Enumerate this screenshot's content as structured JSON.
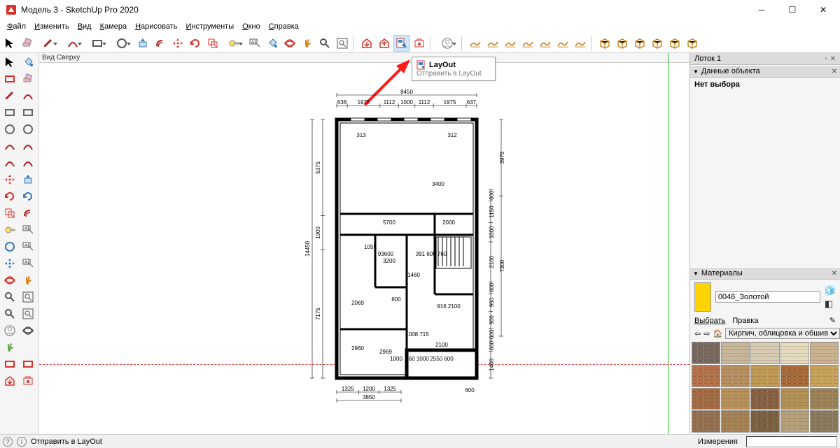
{
  "app": {
    "icon_color": "#d9322b",
    "title": "Модель 3 - SketchUp Pro 2020"
  },
  "menu": {
    "items": [
      "Файл",
      "Изменить",
      "Вид",
      "Камера",
      "Нарисовать",
      "Инструменты",
      "Окно",
      "Справка"
    ]
  },
  "top_toolbar": {
    "icons": [
      {
        "name": "select-arrow",
        "color": "#000"
      },
      {
        "name": "eraser",
        "color": "#6e6e6e"
      },
      {
        "name": "pencil",
        "color": "#b02020",
        "drop": true
      },
      {
        "name": "arc",
        "color": "#b02020",
        "drop": true
      },
      {
        "name": "rectangle",
        "color": "#5a5a5a",
        "drop": true
      },
      {
        "name": "circle",
        "color": "#5a5a5a",
        "drop": true
      },
      {
        "name": "pushpull",
        "color": "#3a78b5"
      },
      {
        "name": "offset",
        "color": "#b02020"
      },
      {
        "name": "move",
        "color": "#d9322b"
      },
      {
        "name": "rotate",
        "color": "#d9322b"
      },
      {
        "name": "scale",
        "color": "#d9322b"
      },
      {
        "name": "tape",
        "color": "#444",
        "drop": true
      },
      {
        "name": "text-label",
        "color": "#444"
      },
      {
        "name": "paint-bucket",
        "color": "#3a78b5"
      },
      {
        "name": "orbit",
        "color": "#d9322b"
      },
      {
        "name": "pan",
        "color": "#d9871d"
      },
      {
        "name": "zoom",
        "color": "#5a5a5a"
      },
      {
        "name": "zoom-extents",
        "color": "#5a5a5a"
      },
      {
        "name": "sep"
      },
      {
        "name": "warehouse-get",
        "color": "#d9322b"
      },
      {
        "name": "warehouse-share",
        "color": "#d9322b"
      },
      {
        "name": "send-layout",
        "color": "#3a78b5",
        "highlighted": true
      },
      {
        "name": "extension-wh",
        "color": "#d9322b"
      },
      {
        "name": "sep"
      },
      {
        "name": "account",
        "color": "#888",
        "drop": true
      },
      {
        "name": "sep"
      },
      {
        "name": "sandbox-contour",
        "color": "#c27b10"
      },
      {
        "name": "sandbox-scratch",
        "color": "#c27b10"
      },
      {
        "name": "sandbox-smoove",
        "color": "#c27b10"
      },
      {
        "name": "sandbox-stamp",
        "color": "#c27b10"
      },
      {
        "name": "sandbox-drape",
        "color": "#c27b10"
      },
      {
        "name": "sandbox-detail",
        "color": "#c27b10"
      },
      {
        "name": "sandbox-flip",
        "color": "#c27b10"
      },
      {
        "name": "sep"
      },
      {
        "name": "solid-outer",
        "color": "#c27b10"
      },
      {
        "name": "solid-intersect",
        "color": "#c27b10"
      },
      {
        "name": "solid-union",
        "color": "#c27b10"
      },
      {
        "name": "solid-subtract",
        "color": "#c27b10"
      },
      {
        "name": "solid-trim",
        "color": "#c27b10"
      },
      {
        "name": "solid-split",
        "color": "#c27b10"
      }
    ]
  },
  "view_label": "Вид Сверху",
  "tooltip": {
    "title": "LayOut",
    "subtitle": "Отправить в LayOut"
  },
  "left_palette": {
    "rows": [
      [
        "select-arrow",
        "paint-bucket-red"
      ],
      [
        "box-red",
        "eraser-pink"
      ],
      [
        "pencil-red",
        "freehand"
      ],
      [
        "rect-gray",
        "rect-rot"
      ],
      [
        "circle-gray",
        "polygon"
      ],
      [
        "arc-red",
        "arc-2pt"
      ],
      [
        "arc-3pt",
        "pie-red"
      ],
      [
        "move-red",
        "pushpull-blue"
      ],
      [
        "rotate-red",
        "followme"
      ],
      [
        "scale-red",
        "offset-red"
      ],
      [
        "tape-measure",
        "dimension"
      ],
      [
        "protractor",
        "text-a1"
      ],
      [
        "axes",
        "3dtext"
      ],
      [
        "orbit-red",
        "pan-hand"
      ],
      [
        "zoom-lens",
        "zoom-window"
      ],
      [
        "prev-view",
        "zoom-extents2"
      ],
      [
        "position-cam",
        "look-around"
      ],
      [
        "walk-feet",
        "blank"
      ],
      [
        "section-plane",
        "section-display"
      ],
      [
        "warehouse-dl",
        "ext-wh2"
      ]
    ]
  },
  "tray": {
    "title": "Лоток 1",
    "entity_panel": {
      "title": "Данные объекта",
      "no_selection": "Нет выбора"
    },
    "materials_panel": {
      "title": "Материалы",
      "current_name": "0046_Золотой",
      "current_color": "#ffd400",
      "tab_select": "Выбрать",
      "tab_edit": "Правка",
      "category": "Кирпич, облицовка и обшив",
      "swatches": [
        "#7a6a60",
        "#c9b79a",
        "#d8cbb2",
        "#e7dbbe",
        "#cbb38f",
        "#b5734b",
        "#b89060",
        "#c19a54",
        "#a86b3a",
        "#caa35a",
        "#a36c45",
        "#b8905a",
        "#886042",
        "#b39054",
        "#9f8358",
        "#95714f",
        "#a78354",
        "#7d6242",
        "#b6a078",
        "#8b7a5c"
      ]
    }
  },
  "statusbar": {
    "hint": "Отправить в LayOut",
    "measurements_label": "Измерения"
  },
  "floorplan": {
    "outer_width": 270,
    "outer_height": 410,
    "wall_stroke": "#000",
    "wall_fill": "#fff",
    "dim_tick": "#000",
    "top_overall": "8450",
    "top_segments": [
      "638",
      "1975",
      "1112",
      "1000",
      "1112",
      "1975",
      "637"
    ],
    "right_overall_top": "3975",
    "right_mid_seg": [
      "600",
      "1150",
      "1000",
      "2100",
      "600",
      "950",
      "900",
      "600",
      "600",
      "1400"
    ],
    "right_overall_bottom": "7300",
    "left_overall": "14450",
    "left_upper": "5375",
    "left_lower": "7175",
    "left_inner": "1900",
    "bottom_segments": [
      "1325",
      "1200",
      "1325"
    ],
    "bottom_overall": "3850",
    "bottom_right": "600",
    "interior_labels": [
      "313",
      "312",
      "3400",
      "5700",
      "2000",
      "1059",
      "93600",
      "3200",
      "2069",
      "2960",
      "2969",
      "600",
      "1460",
      "1000",
      "1008",
      "715",
      "1000",
      "960",
      "1000",
      "2100",
      "2550",
      "600",
      "391 600 760",
      "916 2100",
      "2069"
    ]
  },
  "arrow": {
    "color": "#ff1a1a"
  }
}
